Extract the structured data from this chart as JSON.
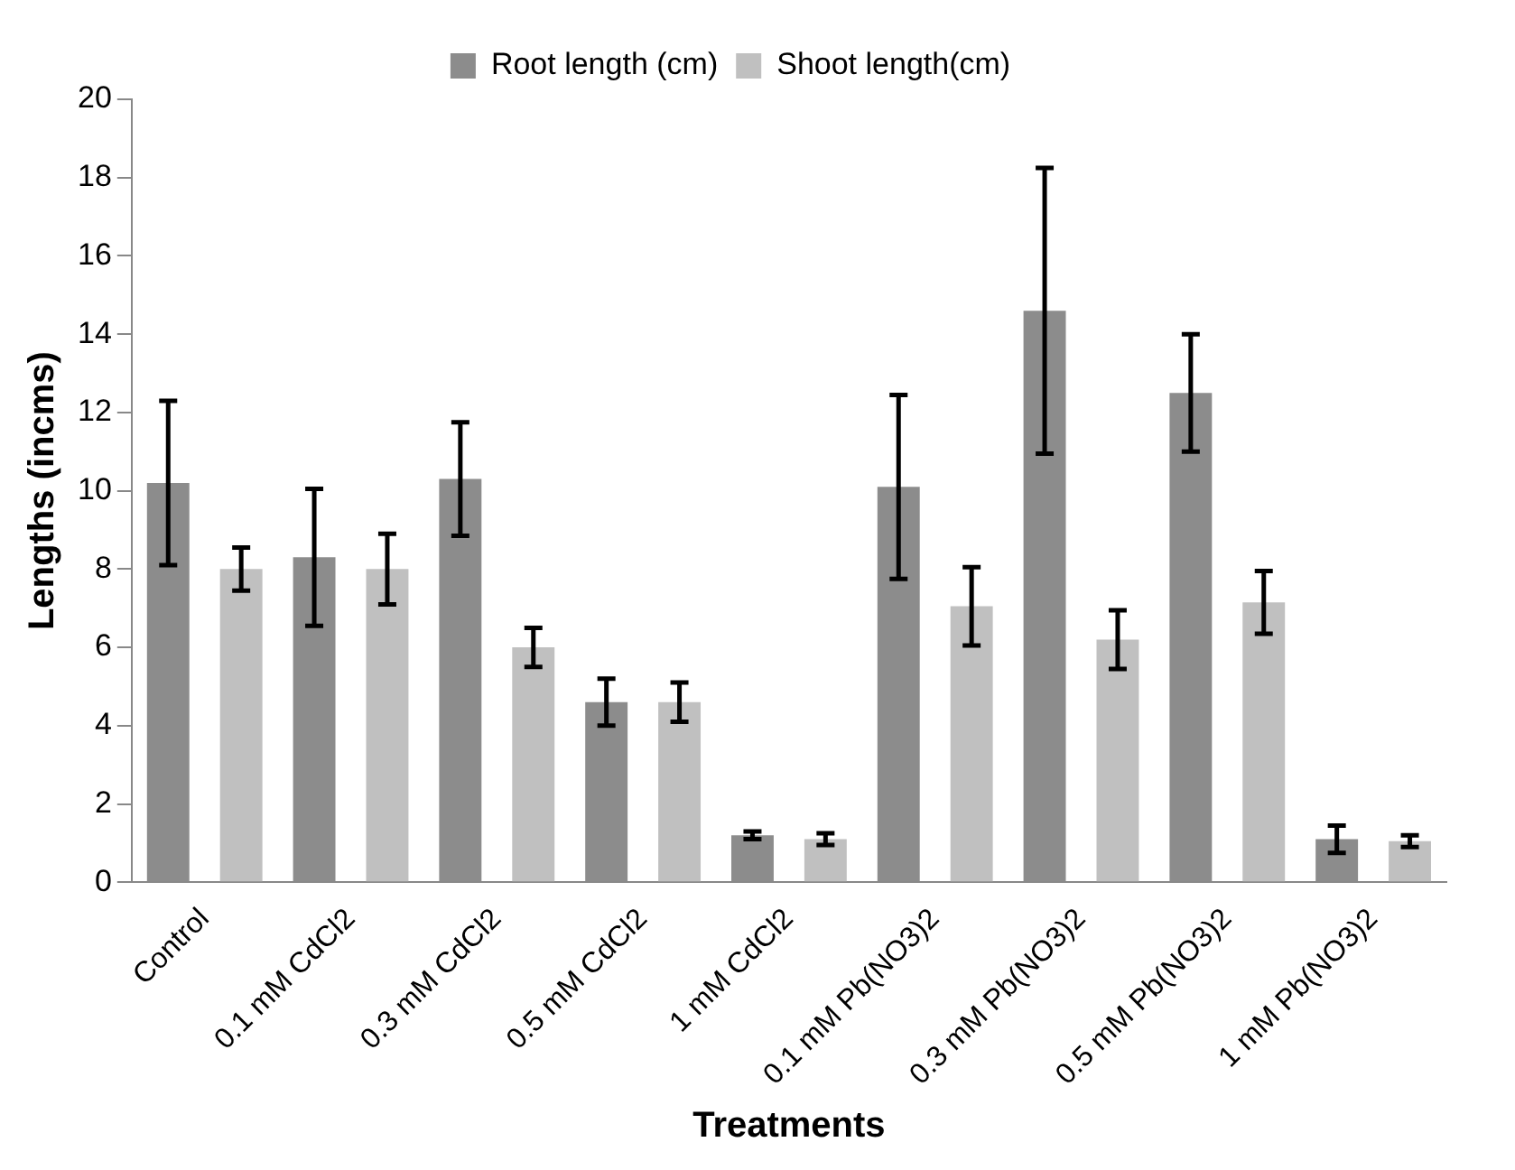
{
  "chart_data": {
    "type": "bar",
    "xlabel": "Treatments",
    "ylabel": "Lengths (incms)",
    "categories": [
      "Control",
      "0.1 mM CdCl2",
      "0.3 mM CdCl2",
      "0.5 mM CdCl2",
      "1 mM CdCl2",
      "0.1 mM Pb(NO3)2",
      "0.3 mM Pb(NO3)2",
      "0.5 mM Pb(NO3)2",
      "1 mM Pb(NO3)2"
    ],
    "series": [
      {
        "name": "Root length (cm)",
        "color": "#8c8c8c",
        "values": [
          10.2,
          8.3,
          10.3,
          4.6,
          1.2,
          10.1,
          14.6,
          12.5,
          1.1
        ],
        "errors": [
          2.1,
          1.75,
          1.45,
          0.6,
          0.1,
          2.35,
          3.65,
          1.5,
          0.35
        ]
      },
      {
        "name": "Shoot length(cm)",
        "color": "#c0c0c0",
        "values": [
          8.0,
          8.0,
          6.0,
          4.6,
          1.1,
          7.05,
          6.2,
          7.15,
          1.05
        ],
        "errors": [
          0.55,
          0.9,
          0.5,
          0.5,
          0.15,
          1.0,
          0.75,
          0.8,
          0.15
        ]
      }
    ],
    "ylim": [
      0,
      20
    ],
    "yticks": [
      0,
      2,
      4,
      6,
      8,
      10,
      12,
      14,
      16,
      18,
      20
    ],
    "grid": false,
    "legend": "top"
  }
}
